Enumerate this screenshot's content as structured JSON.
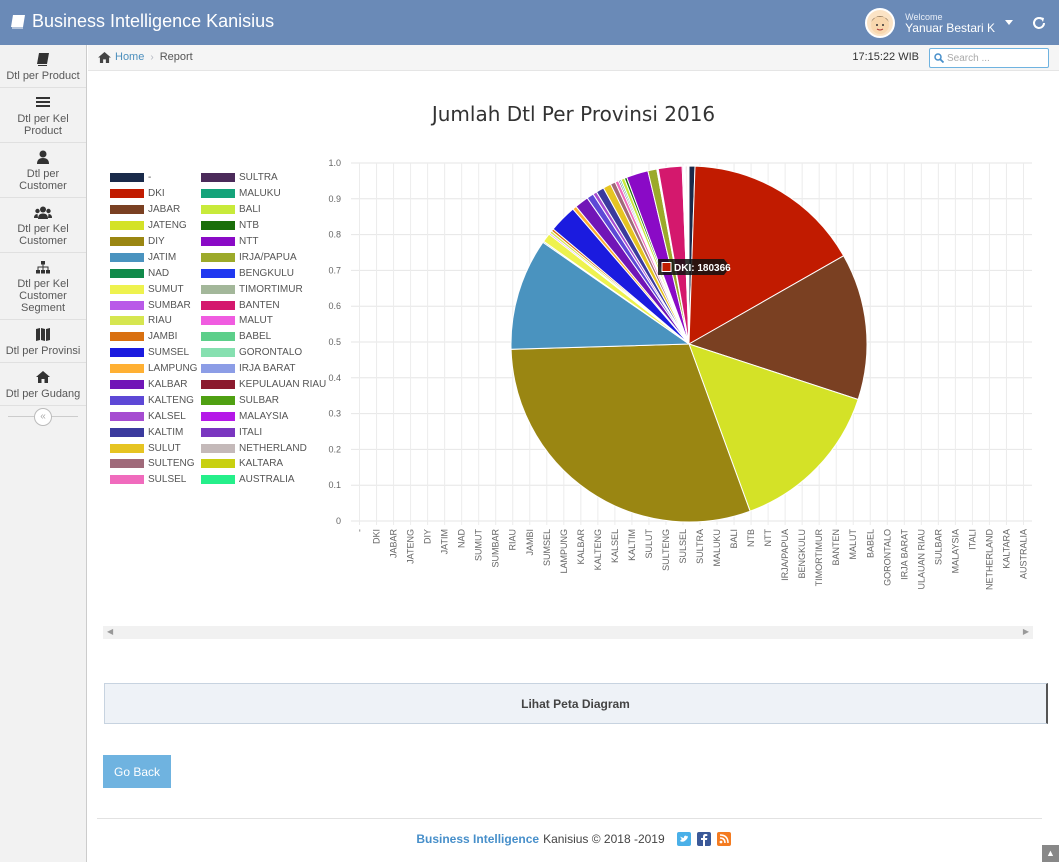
{
  "navbar": {
    "brand": "Business Intelligence Kanisius",
    "welcome_small": "Welcome",
    "user_name": "Yanuar Bestari K",
    "brand_color": "#6a8ab7"
  },
  "sidebar": {
    "items": [
      {
        "label": "Dtl per Product",
        "icon": "book-icon"
      },
      {
        "label": "Dtl per Kel Product",
        "icon": "list-icon"
      },
      {
        "label": "Dtl per Customer",
        "icon": "user-icon"
      },
      {
        "label": "Dtl per Kel Customer",
        "icon": "users-icon"
      },
      {
        "label": "Dtl per Kel Customer Segment",
        "icon": "sitemap-icon"
      },
      {
        "label": "Dtl per Provinsi",
        "icon": "map-icon"
      },
      {
        "label": "Dtl per Gudang",
        "icon": "home-icon"
      }
    ],
    "collapse_label": "«"
  },
  "breadcrumb": {
    "home": "Home",
    "separator": "›",
    "current": "Report"
  },
  "clock": "17:15:22 WIB",
  "search": {
    "placeholder": "Search ..."
  },
  "chart_data": {
    "type": "pie",
    "title": "Jumlah Dtl Per Provinsi 2016",
    "y_ticks": [
      "0",
      "0.1",
      "0.2",
      "0.3",
      "0.4",
      "0.5",
      "0.6",
      "0.7",
      "0.8",
      "0.9",
      "1.0"
    ],
    "ylim": [
      0,
      1.0
    ],
    "grid": true,
    "legend_position": "left",
    "categories": [
      "-",
      "DKI",
      "JABAR",
      "JATENG",
      "DIY",
      "JATIM",
      "NAD",
      "SUMUT",
      "SUMBAR",
      "RIAU",
      "JAMBI",
      "SUMSEL",
      "LAMPUNG",
      "KALBAR",
      "KALTENG",
      "KALSEL",
      "KALTIM",
      "SULUT",
      "SULTENG",
      "SULSEL",
      "SULTRA",
      "MALUKU",
      "BALI",
      "NTB",
      "NTT",
      "IRJA/PAPUA",
      "BENGKULU",
      "TIMORTIMUR",
      "BANTEN",
      "MALUT",
      "BABEL",
      "GORONTALO",
      "IRJA BARAT",
      "KEPULAUAN RIAU",
      "SULBAR",
      "MALAYSIA",
      "ITALI",
      "NETHERLAND",
      "KALTARA",
      "AUSTRALIA"
    ],
    "colors": [
      "#1a2a4a",
      "#c11b00",
      "#7a4022",
      "#d4e227",
      "#9a8612",
      "#4a93bf",
      "#108a4a",
      "#eef24e",
      "#b95ae8",
      "#d6e650",
      "#d97010",
      "#1b1bdf",
      "#ffb033",
      "#7115b7",
      "#5d48d6",
      "#a64cd1",
      "#3b3a9e",
      "#e6c422",
      "#a06a7a",
      "#f06bbd",
      "#4b2a5a",
      "#14a37a",
      "#c8ea3a",
      "#1a6e0a",
      "#8a0ac6",
      "#9caa2a",
      "#2038f0",
      "#a3b79a",
      "#d4186d",
      "#f05ce0",
      "#5ccf8a",
      "#86e0b0",
      "#8c9de6",
      "#8b1a2e",
      "#4fa012",
      "#b518e8",
      "#7a36c0",
      "#c4b9b9",
      "#c8d010",
      "#25ef8a"
    ],
    "values": [
      6000,
      180366,
      148000,
      160000,
      335000,
      113000,
      1200,
      9000,
      1500,
      2500,
      2500,
      28000,
      4000,
      14000,
      7000,
      4000,
      8000,
      8000,
      5000,
      3500,
      1500,
      1500,
      3500,
      2500,
      22000,
      9000,
      900,
      600,
      24000,
      1200,
      900,
      500,
      1100,
      1200,
      400,
      300,
      300,
      300,
      300,
      300
    ],
    "tooltip": {
      "label": "DKI",
      "value": "180366",
      "text": "DKI: 180366"
    }
  },
  "peta_button": "Lihat Peta Diagram",
  "go_back": "Go Back",
  "footer": {
    "brand": "Business Intelligence",
    "rest": "Kanisius © 2018 -2019"
  }
}
